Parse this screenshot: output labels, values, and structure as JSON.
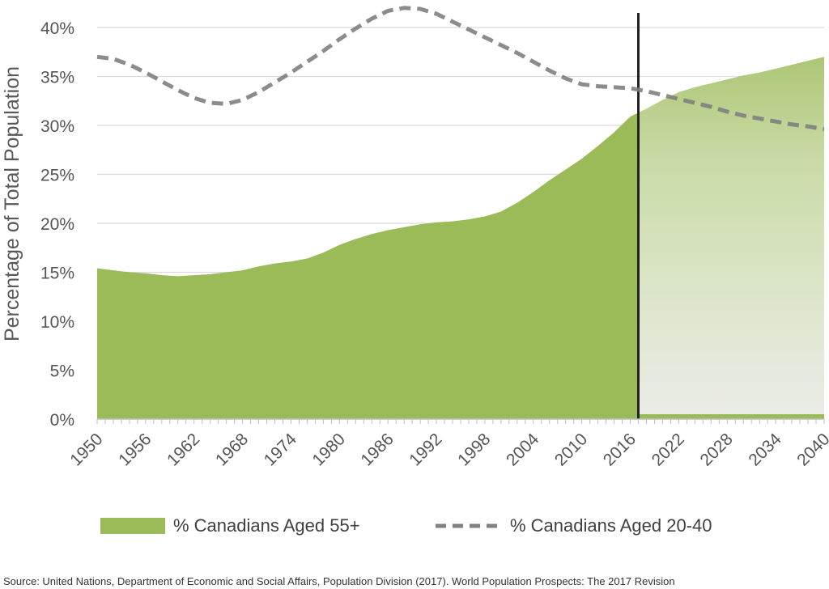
{
  "chart_data": {
    "type": "area",
    "ylabel": "Percentage of Total Population",
    "ylim": [
      0,
      40
    ],
    "yticks": [
      0,
      5,
      10,
      15,
      20,
      25,
      30,
      35,
      40
    ],
    "ytick_labels": [
      "0%",
      "5%",
      "10%",
      "15%",
      "20%",
      "25%",
      "30%",
      "35%",
      "40%"
    ],
    "xlim": [
      1950,
      2040
    ],
    "xtick_labels": [
      "1950",
      "1956",
      "1962",
      "1968",
      "1974",
      "1980",
      "1986",
      "1992",
      "1998",
      "2004",
      "2010",
      "2016",
      "2022",
      "2028",
      "2034",
      "2040"
    ],
    "grid": "horizontal",
    "legend_position": "bottom",
    "projection_start": 2017,
    "series": [
      {
        "name": "% Canadians Aged 55+",
        "kind": "area",
        "color": "#9bbb59",
        "x": [
          1950,
          1952,
          1954,
          1956,
          1958,
          1960,
          1962,
          1964,
          1966,
          1968,
          1970,
          1972,
          1974,
          1976,
          1978,
          1980,
          1982,
          1984,
          1986,
          1988,
          1990,
          1992,
          1994,
          1996,
          1998,
          2000,
          2002,
          2004,
          2006,
          2008,
          2010,
          2012,
          2014,
          2016,
          2017,
          2018,
          2020,
          2022,
          2024,
          2026,
          2028,
          2030,
          2032,
          2034,
          2036,
          2038,
          2040
        ],
        "values": [
          15.4,
          15.2,
          15.0,
          14.9,
          14.7,
          14.6,
          14.7,
          14.8,
          15.0,
          15.2,
          15.6,
          15.9,
          16.1,
          16.4,
          17.0,
          17.8,
          18.4,
          18.9,
          19.3,
          19.6,
          19.9,
          20.1,
          20.2,
          20.4,
          20.7,
          21.2,
          22.1,
          23.2,
          24.4,
          25.5,
          26.6,
          27.9,
          29.3,
          30.9,
          31.3,
          31.7,
          32.6,
          33.4,
          33.9,
          34.3,
          34.7,
          35.1,
          35.4,
          35.8,
          36.2,
          36.6,
          37.0
        ]
      },
      {
        "name": "% Canadians Aged 20-40",
        "kind": "line",
        "style": "dashed",
        "color": "#808080",
        "x": [
          1950,
          1952,
          1954,
          1956,
          1958,
          1960,
          1962,
          1964,
          1966,
          1968,
          1970,
          1972,
          1974,
          1976,
          1978,
          1980,
          1982,
          1984,
          1986,
          1988,
          1990,
          1992,
          1994,
          1996,
          1998,
          2000,
          2002,
          2004,
          2006,
          2008,
          2010,
          2012,
          2014,
          2016,
          2018,
          2020,
          2022,
          2024,
          2026,
          2028,
          2030,
          2032,
          2034,
          2036,
          2038,
          2040
        ],
        "values": [
          37.0,
          36.8,
          36.2,
          35.4,
          34.5,
          33.6,
          32.8,
          32.3,
          32.2,
          32.6,
          33.4,
          34.4,
          35.4,
          36.5,
          37.6,
          38.8,
          39.9,
          40.9,
          41.7,
          42.0,
          41.9,
          41.4,
          40.6,
          39.8,
          39.0,
          38.2,
          37.4,
          36.5,
          35.6,
          34.8,
          34.2,
          34.0,
          33.9,
          33.8,
          33.5,
          33.1,
          32.7,
          32.3,
          31.9,
          31.4,
          31.0,
          30.7,
          30.4,
          30.1,
          29.9,
          29.6
        ]
      }
    ]
  },
  "source": "Source: United Nations, Department of Economic and Social Affairs, Population Division (2017). World Population Prospects: The 2017 Revision"
}
